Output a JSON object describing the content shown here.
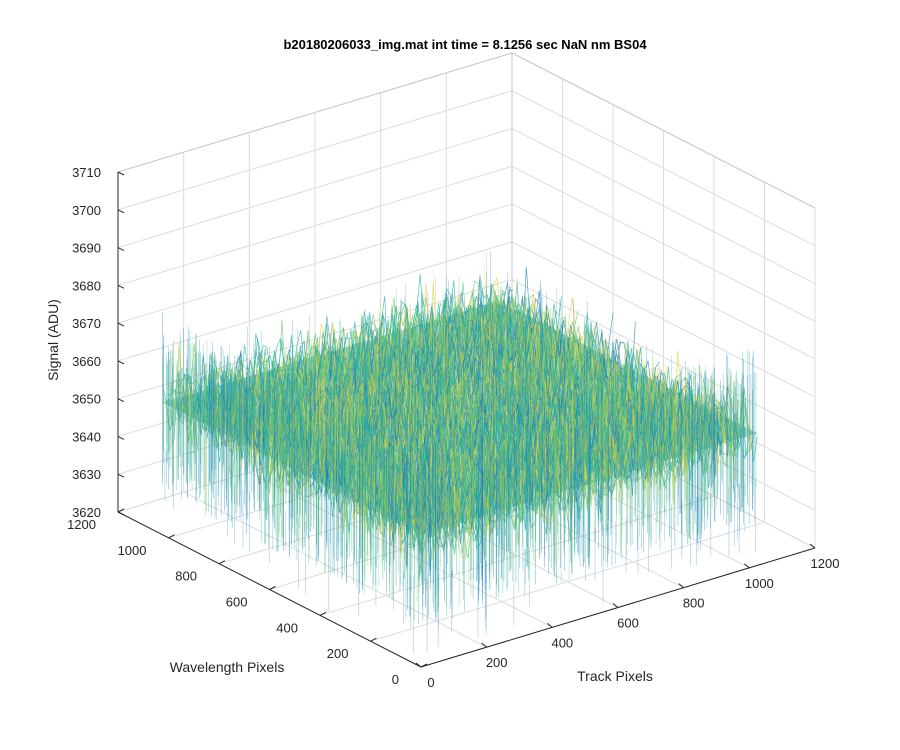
{
  "chart_data": {
    "type": "surface",
    "title": "b20180206033_img.mat int time = 8.1256 sec  NaN nm BS04",
    "xlabel": "Track Pixels",
    "ylabel": "Wavelength Pixels",
    "zlabel": "Signal (ADU)",
    "x_ticks": [
      "0",
      "200",
      "400",
      "600",
      "800",
      "1000",
      "1200"
    ],
    "y_ticks": [
      "0",
      "200",
      "400",
      "600",
      "800",
      "1000",
      "1200"
    ],
    "z_ticks": [
      "3620",
      "3630",
      "3640",
      "3650",
      "3660",
      "3670",
      "3680",
      "3690",
      "3700",
      "3710"
    ],
    "xlim": [
      0,
      1200
    ],
    "ylim": [
      0,
      1200
    ],
    "zlim": [
      3620,
      3710
    ],
    "surface": {
      "x_extent": [
        0,
        1024
      ],
      "y_extent": [
        0,
        1024
      ],
      "mean": 3655,
      "typical_range": [
        3635,
        3680
      ],
      "colormap": "parula"
    },
    "grid": true,
    "colors": {
      "blue": "#1d7fbf",
      "teal": "#20b09f",
      "green": "#6cc070",
      "yellow": "#e6d23c"
    }
  }
}
